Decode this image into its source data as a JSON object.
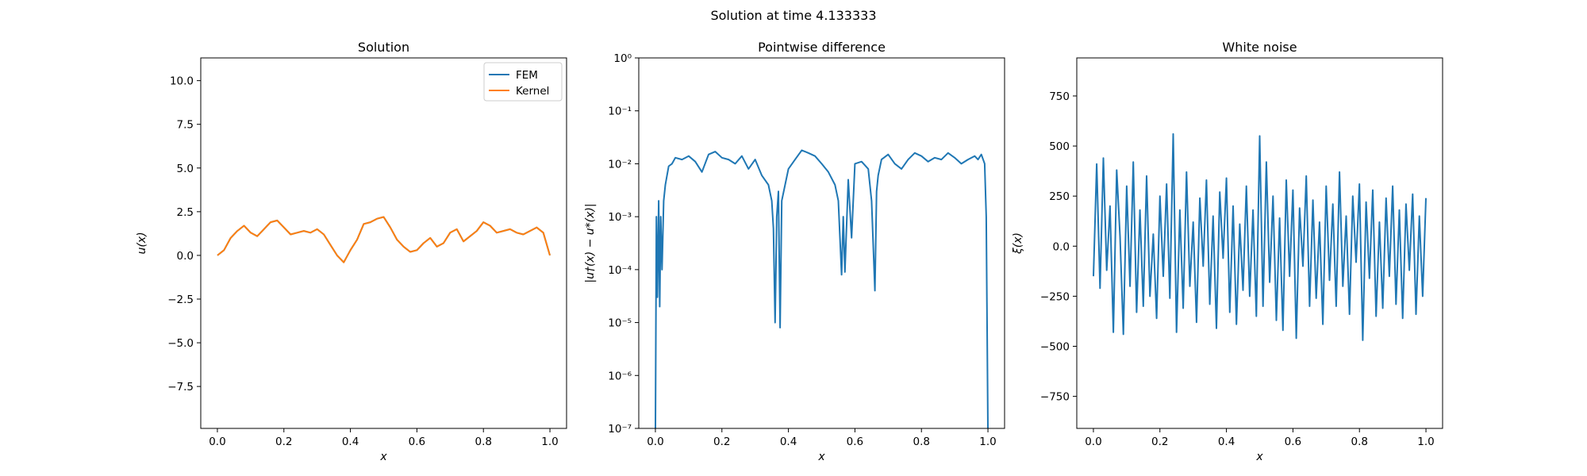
{
  "figure": {
    "suptitle": "Solution at time 4.133333"
  },
  "chart_data": [
    {
      "type": "line",
      "title": "Solution",
      "xlabel": "x",
      "ylabel": "u(x)",
      "xlim": [
        -0.05,
        1.05
      ],
      "ylim": [
        -9.9,
        11.3
      ],
      "xticks": [
        0.0,
        0.2,
        0.4,
        0.6,
        0.8,
        1.0
      ],
      "yticks": [
        -7.5,
        -5.0,
        -2.5,
        0.0,
        2.5,
        5.0,
        7.5,
        10.0
      ],
      "grid": false,
      "legend": "top-right",
      "series": [
        {
          "name": "FEM",
          "color": "#1f77b4",
          "x": [
            0.0,
            0.02,
            0.04,
            0.06,
            0.08,
            0.1,
            0.12,
            0.14,
            0.16,
            0.18,
            0.2,
            0.22,
            0.24,
            0.26,
            0.28,
            0.3,
            0.32,
            0.34,
            0.36,
            0.38,
            0.4,
            0.42,
            0.44,
            0.46,
            0.48,
            0.5,
            0.52,
            0.54,
            0.56,
            0.58,
            0.6,
            0.62,
            0.64,
            0.66,
            0.68,
            0.7,
            0.72,
            0.74,
            0.76,
            0.78,
            0.8,
            0.82,
            0.84,
            0.86,
            0.88,
            0.9,
            0.92,
            0.94,
            0.96,
            0.98,
            1.0
          ],
          "y": [
            0.0,
            0.3,
            1.0,
            1.4,
            1.7,
            1.3,
            1.1,
            1.5,
            1.9,
            2.0,
            1.6,
            1.2,
            1.3,
            1.4,
            1.3,
            1.5,
            1.2,
            0.6,
            0.0,
            -0.4,
            0.3,
            0.9,
            1.8,
            1.9,
            2.1,
            2.2,
            1.6,
            0.9,
            0.5,
            0.2,
            0.3,
            0.7,
            1.0,
            0.5,
            0.7,
            1.3,
            1.5,
            0.8,
            1.1,
            1.4,
            1.9,
            1.7,
            1.3,
            1.4,
            1.5,
            1.3,
            1.2,
            1.4,
            1.6,
            1.3,
            0.0
          ]
        },
        {
          "name": "Kernel",
          "color": "#ff7f0e",
          "x": [
            0.0,
            0.02,
            0.04,
            0.06,
            0.08,
            0.1,
            0.12,
            0.14,
            0.16,
            0.18,
            0.2,
            0.22,
            0.24,
            0.26,
            0.28,
            0.3,
            0.32,
            0.34,
            0.36,
            0.38,
            0.4,
            0.42,
            0.44,
            0.46,
            0.48,
            0.5,
            0.52,
            0.54,
            0.56,
            0.58,
            0.6,
            0.62,
            0.64,
            0.66,
            0.68,
            0.7,
            0.72,
            0.74,
            0.76,
            0.78,
            0.8,
            0.82,
            0.84,
            0.86,
            0.88,
            0.9,
            0.92,
            0.94,
            0.96,
            0.98,
            1.0
          ],
          "y": [
            0.0,
            0.3,
            1.0,
            1.4,
            1.7,
            1.3,
            1.1,
            1.5,
            1.9,
            2.0,
            1.6,
            1.2,
            1.3,
            1.4,
            1.3,
            1.5,
            1.2,
            0.6,
            0.0,
            -0.4,
            0.3,
            0.9,
            1.8,
            1.9,
            2.1,
            2.2,
            1.6,
            0.9,
            0.5,
            0.2,
            0.3,
            0.7,
            1.0,
            0.5,
            0.7,
            1.3,
            1.5,
            0.8,
            1.1,
            1.4,
            1.9,
            1.7,
            1.3,
            1.4,
            1.5,
            1.3,
            1.2,
            1.4,
            1.6,
            1.3,
            0.0
          ]
        }
      ]
    },
    {
      "type": "line",
      "title": "Pointwise difference",
      "xlabel": "x",
      "ylabel": "|u†(x) − u*(x)|",
      "yscale": "log",
      "xlim": [
        -0.05,
        1.05
      ],
      "ylim": [
        1e-07,
        1
      ],
      "xticks": [
        0.0,
        0.2,
        0.4,
        0.6,
        0.8,
        1.0
      ],
      "yticks": [
        "10^-7",
        "10^-6",
        "10^-5",
        "10^-4",
        "10^-3",
        "10^-2",
        "10^-1",
        "10^0"
      ],
      "grid": false,
      "series": [
        {
          "color": "#1f77b4",
          "x": [
            0.0,
            0.003,
            0.006,
            0.01,
            0.013,
            0.016,
            0.02,
            0.025,
            0.03,
            0.035,
            0.04,
            0.05,
            0.06,
            0.08,
            0.1,
            0.12,
            0.14,
            0.16,
            0.18,
            0.2,
            0.22,
            0.24,
            0.26,
            0.28,
            0.3,
            0.32,
            0.34,
            0.35,
            0.355,
            0.36,
            0.365,
            0.37,
            0.375,
            0.38,
            0.39,
            0.4,
            0.42,
            0.44,
            0.46,
            0.48,
            0.5,
            0.52,
            0.54,
            0.55,
            0.56,
            0.565,
            0.57,
            0.58,
            0.59,
            0.6,
            0.62,
            0.64,
            0.65,
            0.66,
            0.665,
            0.67,
            0.68,
            0.7,
            0.72,
            0.74,
            0.76,
            0.78,
            0.8,
            0.82,
            0.84,
            0.86,
            0.88,
            0.9,
            0.92,
            0.94,
            0.96,
            0.97,
            0.98,
            0.99,
            0.995,
            1.0
          ],
          "y": [
            1e-07,
            0.001,
            3e-05,
            0.002,
            2e-05,
            0.001,
            0.0001,
            0.002,
            0.004,
            0.006,
            0.009,
            0.01,
            0.013,
            0.012,
            0.014,
            0.011,
            0.007,
            0.015,
            0.017,
            0.013,
            0.012,
            0.01,
            0.014,
            0.008,
            0.012,
            0.006,
            0.004,
            0.002,
            0.0006,
            1e-05,
            0.001,
            0.003,
            8e-06,
            0.002,
            0.004,
            0.008,
            0.012,
            0.018,
            0.016,
            0.014,
            0.01,
            0.007,
            0.004,
            0.002,
            8e-05,
            0.001,
            9e-05,
            0.005,
            0.0004,
            0.01,
            0.011,
            0.008,
            0.002,
            4e-05,
            0.003,
            0.006,
            0.012,
            0.015,
            0.01,
            0.008,
            0.012,
            0.016,
            0.014,
            0.011,
            0.013,
            0.012,
            0.016,
            0.013,
            0.01,
            0.012,
            0.014,
            0.012,
            0.015,
            0.01,
            0.001,
            1e-07
          ]
        }
      ]
    },
    {
      "type": "line",
      "title": "White noise",
      "xlabel": "x",
      "ylabel": "ξ(x)",
      "xlim": [
        -0.05,
        1.05
      ],
      "ylim": [
        -910,
        940
      ],
      "xticks": [
        0.0,
        0.2,
        0.4,
        0.6,
        0.8,
        1.0
      ],
      "yticks": [
        -750,
        -500,
        -250,
        0,
        250,
        500,
        750
      ],
      "grid": false,
      "series": [
        {
          "color": "#1f77b4",
          "x": [
            0.0,
            0.01,
            0.02,
            0.03,
            0.04,
            0.05,
            0.06,
            0.07,
            0.08,
            0.09,
            0.1,
            0.11,
            0.12,
            0.13,
            0.14,
            0.15,
            0.16,
            0.17,
            0.18,
            0.19,
            0.2,
            0.21,
            0.22,
            0.23,
            0.24,
            0.25,
            0.26,
            0.27,
            0.28,
            0.29,
            0.3,
            0.31,
            0.32,
            0.33,
            0.34,
            0.35,
            0.36,
            0.37,
            0.38,
            0.39,
            0.4,
            0.41,
            0.42,
            0.43,
            0.44,
            0.45,
            0.46,
            0.47,
            0.48,
            0.49,
            0.5,
            0.51,
            0.52,
            0.53,
            0.54,
            0.55,
            0.56,
            0.57,
            0.58,
            0.59,
            0.6,
            0.61,
            0.62,
            0.63,
            0.64,
            0.65,
            0.66,
            0.67,
            0.68,
            0.69,
            0.7,
            0.71,
            0.72,
            0.73,
            0.74,
            0.75,
            0.76,
            0.77,
            0.78,
            0.79,
            0.8,
            0.81,
            0.82,
            0.83,
            0.84,
            0.85,
            0.86,
            0.87,
            0.88,
            0.89,
            0.9,
            0.91,
            0.92,
            0.93,
            0.94,
            0.95,
            0.96,
            0.97,
            0.98,
            0.99,
            1.0
          ],
          "y": [
            -150,
            410,
            -210,
            440,
            -120,
            200,
            -430,
            380,
            50,
            -440,
            300,
            -200,
            420,
            -330,
            180,
            -300,
            350,
            -250,
            60,
            -360,
            250,
            -150,
            310,
            -260,
            560,
            -430,
            180,
            -310,
            370,
            -200,
            120,
            -380,
            240,
            -100,
            330,
            -290,
            150,
            -410,
            270,
            -60,
            340,
            -330,
            200,
            -390,
            110,
            -220,
            300,
            -250,
            180,
            -350,
            550,
            -300,
            420,
            -180,
            250,
            -370,
            140,
            -420,
            330,
            -150,
            280,
            -460,
            190,
            -100,
            350,
            -300,
            230,
            -260,
            120,
            -390,
            300,
            -170,
            210,
            -300,
            370,
            -200,
            150,
            -340,
            250,
            -80,
            310,
            -470,
            220,
            -160,
            280,
            -350,
            120,
            -310,
            240,
            -150,
            300,
            -290,
            180,
            -360,
            210,
            -120,
            260,
            -340,
            150,
            -250,
            240
          ]
        }
      ]
    }
  ]
}
